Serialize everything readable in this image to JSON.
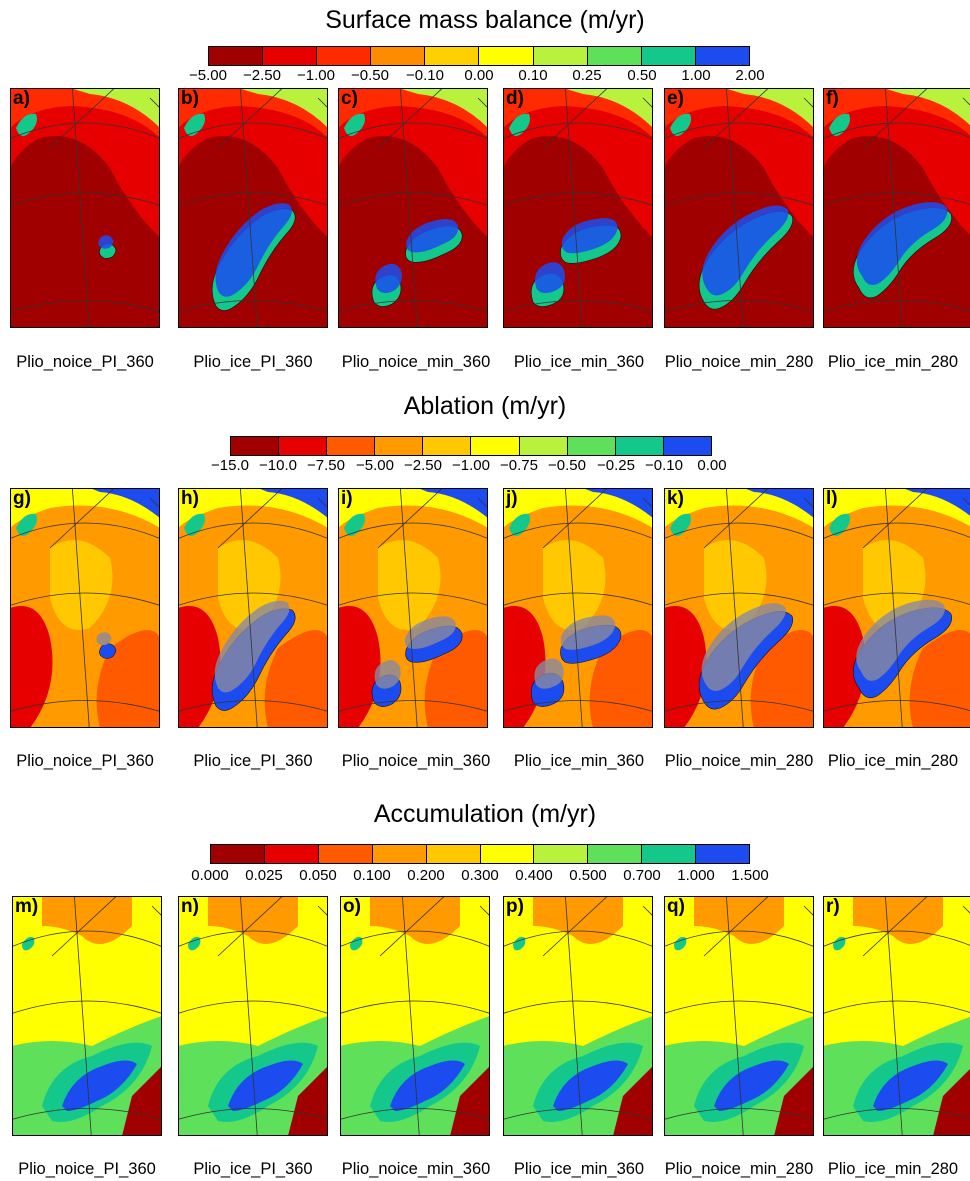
{
  "sections": [
    {
      "title": "Surface mass balance (m/yr)",
      "ticks": [
        "−5.00",
        "−2.50",
        "−1.00",
        "−0.50",
        "−0.10",
        "0.00",
        "0.10",
        "0.25",
        "0.50",
        "1.00",
        "2.00"
      ],
      "colors": [
        "#a10000",
        "#e60000",
        "#ff2a00",
        "#ff8c00",
        "#ffd000",
        "#ffff00",
        "#b9f23c",
        "#5fe05a",
        "#14c88c",
        "#1c4cf0"
      ],
      "panels": [
        {
          "label": "a)",
          "caption": "Plio_noice_PI_360"
        },
        {
          "label": "b)",
          "caption": "Plio_ice_PI_360"
        },
        {
          "label": "c)",
          "caption": "Plio_noice_min_360"
        },
        {
          "label": "d)",
          "caption": "Plio_ice_min_360"
        },
        {
          "label": "e)",
          "caption": "Plio_noice_min_280"
        },
        {
          "label": "f)",
          "caption": "Plio_ice_min_280"
        }
      ]
    },
    {
      "title": "Ablation (m/yr)",
      "ticks": [
        "−15.0",
        "−10.0",
        "−7.50",
        "−5.00",
        "−2.50",
        "−1.00",
        "−0.75",
        "−0.50",
        "−0.25",
        "−0.10",
        "0.00"
      ],
      "colors": [
        "#a10000",
        "#e60000",
        "#ff5a00",
        "#ff9a00",
        "#ffc800",
        "#ffff00",
        "#b9f23c",
        "#5fe05a",
        "#14c88c",
        "#1c4cf0"
      ],
      "panels": [
        {
          "label": "g)",
          "caption": "Plio_noice_PI_360"
        },
        {
          "label": "h)",
          "caption": "Plio_ice_PI_360"
        },
        {
          "label": "i)",
          "caption": "Plio_noice_min_360"
        },
        {
          "label": "j)",
          "caption": "Plio_ice_min_360"
        },
        {
          "label": "k)",
          "caption": "Plio_noice_min_280"
        },
        {
          "label": "l)",
          "caption": "Plio_ice_min_280"
        }
      ]
    },
    {
      "title": "Accumulation (m/yr)",
      "ticks": [
        "0.000",
        "0.025",
        "0.050",
        "0.100",
        "0.200",
        "0.300",
        "0.400",
        "0.500",
        "0.700",
        "1.000",
        "1.500"
      ],
      "colors": [
        "#a10000",
        "#e60000",
        "#ff5a00",
        "#ff9a00",
        "#ffc800",
        "#ffff00",
        "#b9f23c",
        "#5fe05a",
        "#14c88c",
        "#1c4cf0"
      ],
      "panels": [
        {
          "label": "m)",
          "caption": "Plio_noice_PI_360"
        },
        {
          "label": "n)",
          "caption": "Plio_ice_PI_360"
        },
        {
          "label": "o)",
          "caption": "Plio_noice_min_360"
        },
        {
          "label": "p)",
          "caption": "Plio_ice_min_360"
        },
        {
          "label": "q)",
          "caption": "Plio_noice_min_280"
        },
        {
          "label": "r)",
          "caption": "Plio_ice_min_280"
        }
      ]
    }
  ]
}
